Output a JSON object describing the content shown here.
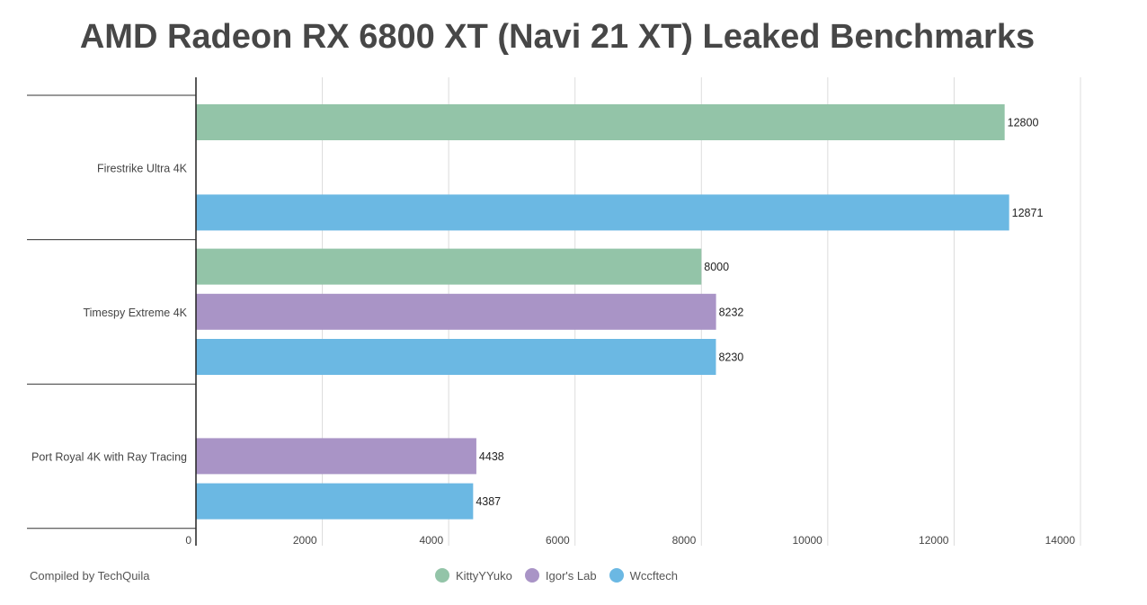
{
  "title": "AMD Radeon RX 6800 XT (Navi 21 XT) Leaked Benchmarks",
  "credit": "Compiled by TechQuila",
  "chart_data": {
    "type": "bar",
    "orientation": "horizontal",
    "categories": [
      "Firestrike Ultra 4K",
      "Timespy Extreme 4K",
      "Port Royal 4K with Ray Tracing"
    ],
    "series": [
      {
        "name": "KittyYYuko",
        "color": "#93c4a8",
        "values": [
          12800,
          8000,
          null
        ]
      },
      {
        "name": "Igor's Lab",
        "color": "#a994c6",
        "values": [
          null,
          8232,
          4438
        ]
      },
      {
        "name": "Wccftech",
        "color": "#6bb8e3",
        "values": [
          12871,
          8230,
          4387
        ]
      }
    ],
    "xlim": [
      0,
      14000
    ],
    "xticks": [
      0,
      2000,
      4000,
      6000,
      8000,
      10000,
      12000,
      14000
    ],
    "grid": true,
    "legend_position": "bottom-center",
    "data_labels": true
  }
}
